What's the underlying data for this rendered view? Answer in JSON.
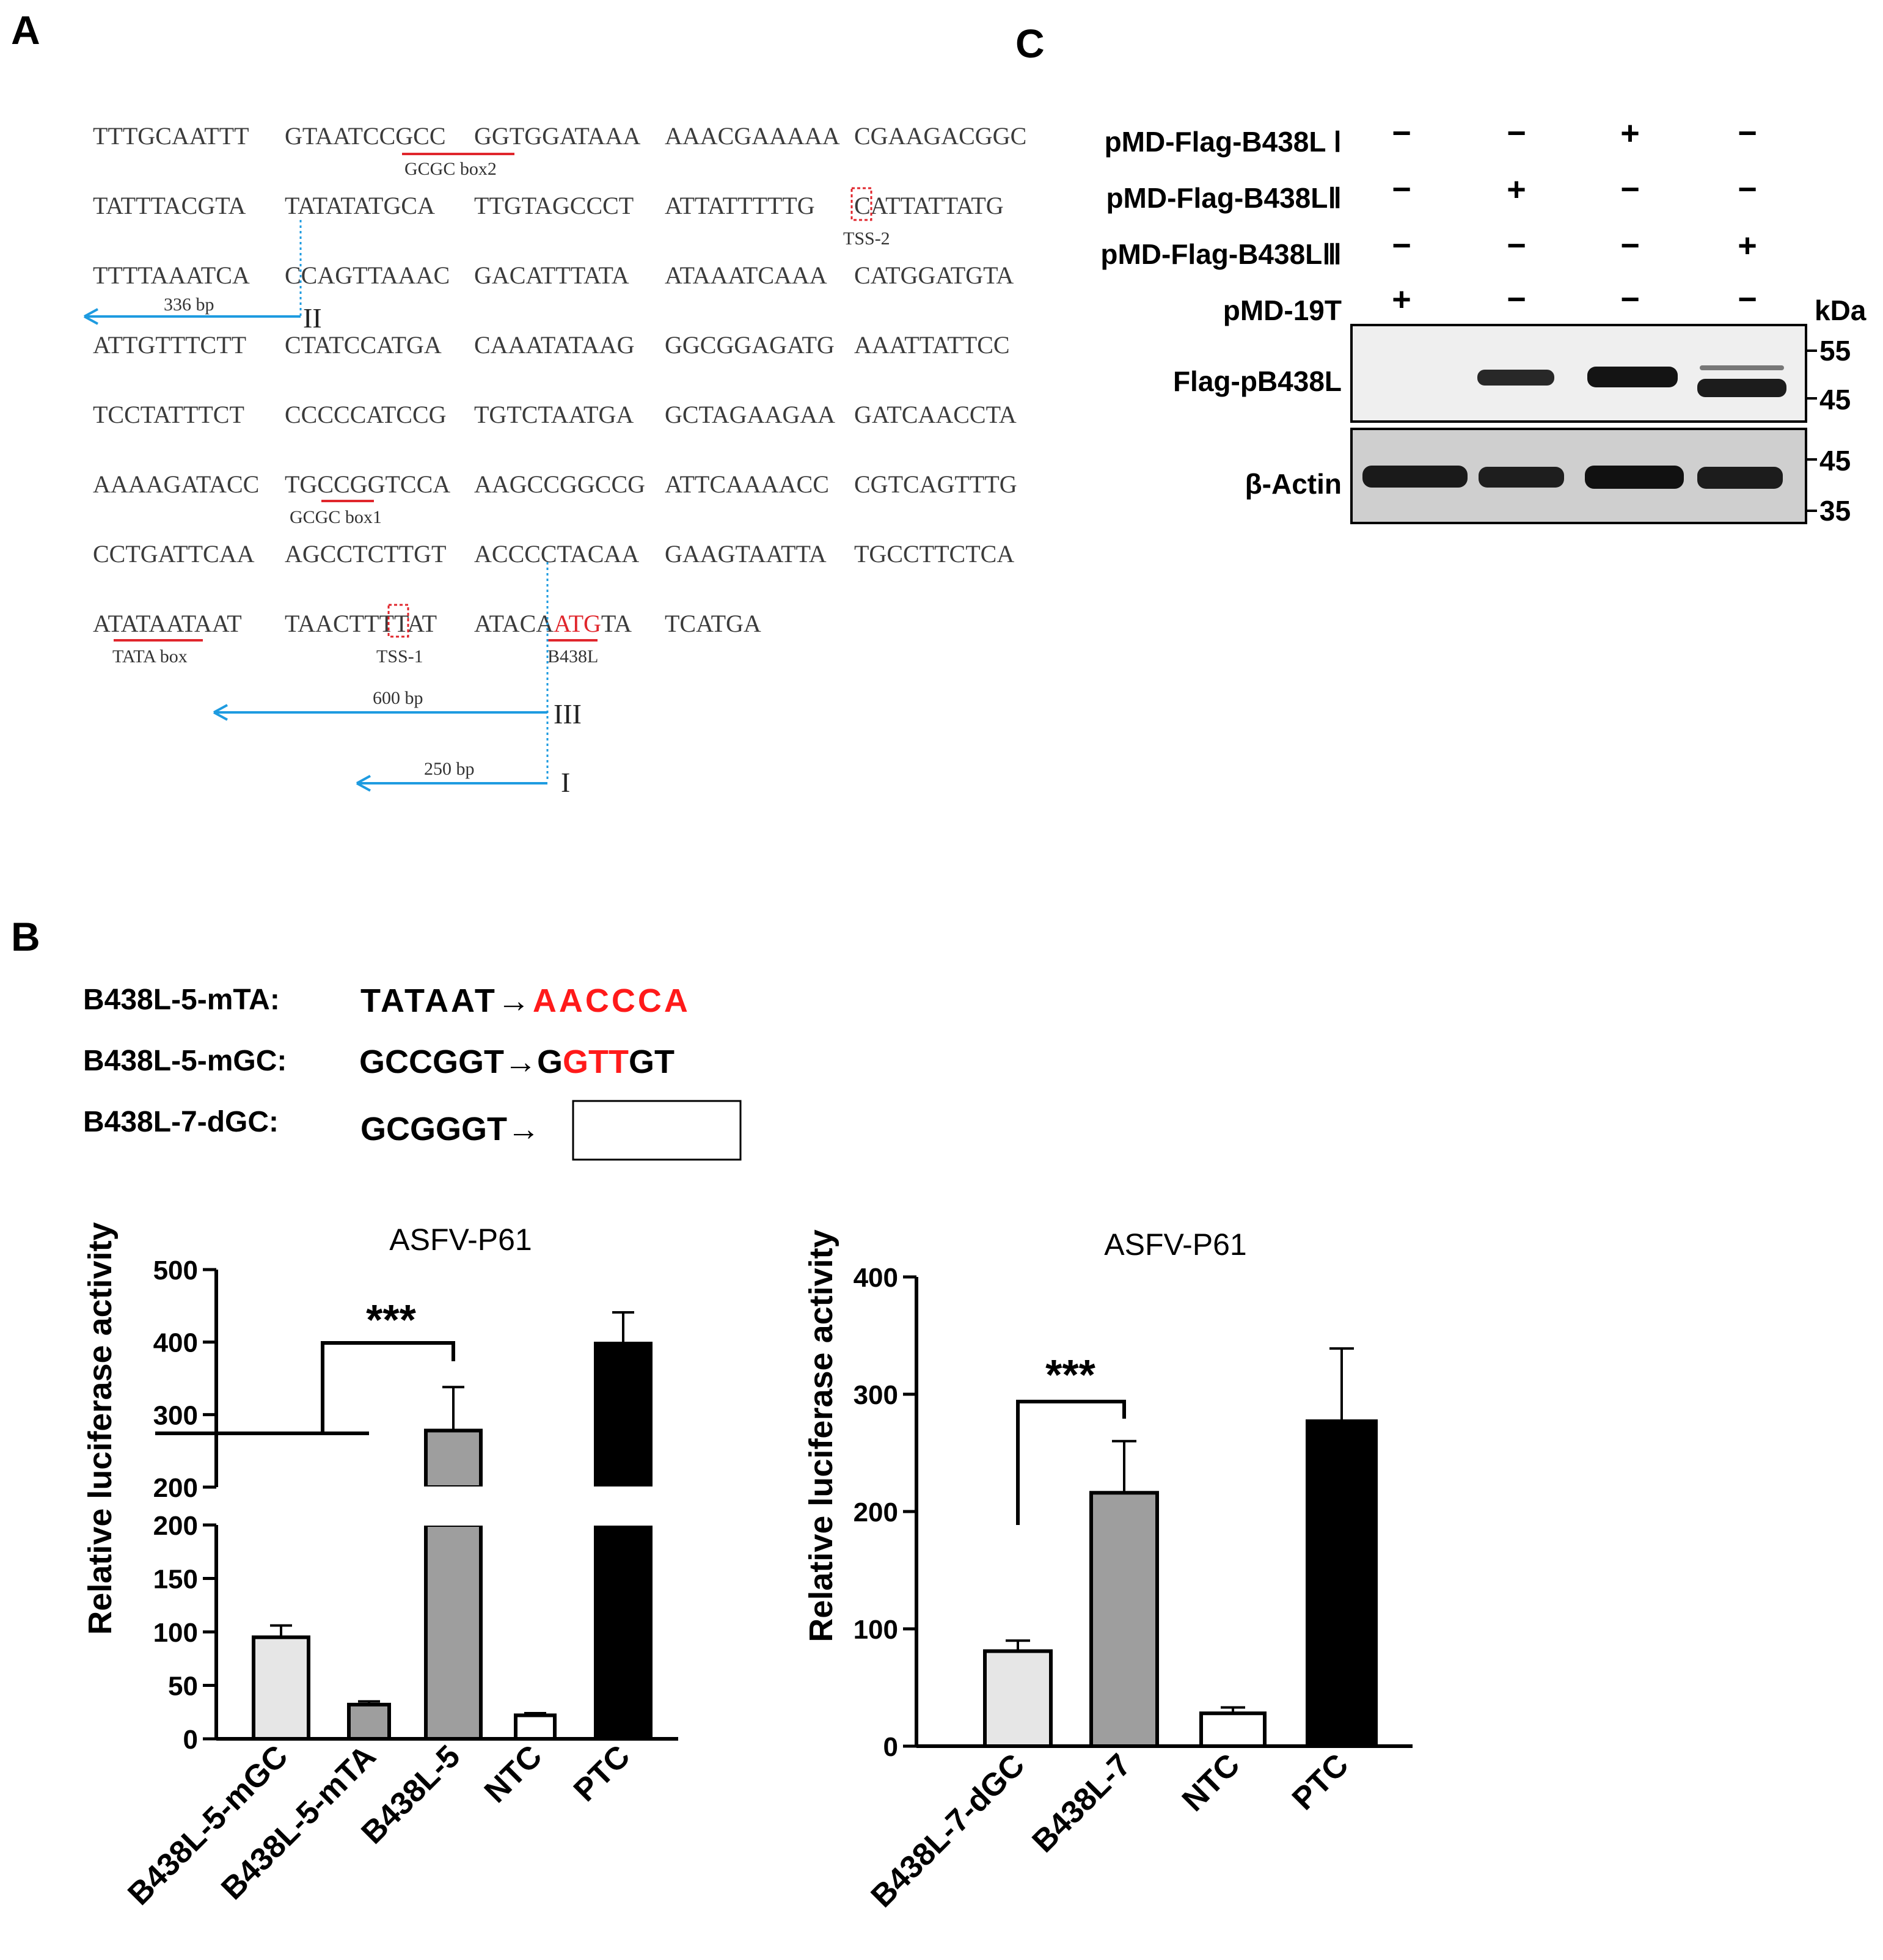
{
  "panel_a": {
    "letter": "A",
    "rows": [
      [
        "TTTGCAATTT",
        "GTAATCCGCC",
        "GGTGGATAAA",
        "AAACGAAAAA",
        "CGAAGACGGC"
      ],
      [
        "TATTTACGTA",
        "TATATATGCA",
        "TTGTAGCCCT",
        "ATTATTTTTG",
        "CATTATTATG"
      ],
      [
        "TTTTAAATCA",
        "CCAGTTAAAC",
        "GACATTTATA",
        "ATAAATCAAA",
        "CATGGATGTA"
      ],
      [
        "ATTGTTTCTT",
        "CTATCCATGA",
        "CAAATATAAG",
        "GGCGGAGATG",
        "AAATTATTCC"
      ],
      [
        "TCCTATTTCT",
        "CCCCCATCCG",
        "TGTCTAATGA",
        "GCTAGAAGAA",
        "GATCAACCTA"
      ],
      [
        "AAAAGATACC",
        "TGCCGGTCCA",
        "AAGCCGGCCG",
        "ATTCAAAACC",
        "CGTCAGTTTG"
      ],
      [
        "CCTGATTCAA",
        "AGCCTCTTGT",
        "ACCCCTACAA",
        "GAAGTAATTA",
        "TGCCTTCTCA"
      ],
      [
        "ATATAATAAT",
        "TAACTTTTAT",
        "ATACAATGTA",
        "TCATGA"
      ]
    ],
    "atg_prefix": "ATACA",
    "atg": "ATG",
    "atg_suffix": "TA",
    "annotations": {
      "gcgc_box2": "GCGC box2",
      "tss2": "TSS-2",
      "gcgc_box1": "GCGC box1",
      "tata_box": "TATA box",
      "tss1": "TSS-1",
      "b438l": "B438L"
    },
    "arrows": [
      {
        "roman": "II",
        "length": "336 bp"
      },
      {
        "roman": "III",
        "length": "600 bp"
      },
      {
        "roman": "I",
        "length": "250 bp"
      }
    ],
    "arrow_color": "#1e9be0",
    "mark_color": "#e0262c"
  },
  "panel_b": {
    "letter": "B",
    "mutations": [
      {
        "label": "B438L-5-mTA:",
        "original": "TATAAT",
        "arrow": "→",
        "mutated": "AACCCA"
      },
      {
        "label": "B438L-5-mGC:",
        "original": "GCCGGT",
        "arrow": "→",
        "mut_pre": "G",
        "mut_red": "GTT",
        "mut_post": "GT"
      },
      {
        "label": "B438L-7-dGC:",
        "original": "GCGGGT",
        "arrow": "→"
      }
    ],
    "highlight_color": "#ff1a1a"
  },
  "panel_c": {
    "letter": "C",
    "rows": [
      {
        "label": "pMD-Flag-B438L Ⅰ",
        "signs": [
          "−",
          "−",
          "+",
          "−"
        ]
      },
      {
        "label": "pMD-Flag-B438LⅡ",
        "signs": [
          "−",
          "+",
          "−",
          "−"
        ]
      },
      {
        "label": "pMD-Flag-B438LⅢ",
        "signs": [
          "−",
          "−",
          "−",
          "+"
        ]
      },
      {
        "label": "pMD-19T",
        "signs": [
          "+",
          "−",
          "−",
          "−"
        ]
      }
    ],
    "kda": "kDa",
    "blots": [
      {
        "label": "Flag-pB438L",
        "markers": [
          "55",
          "45"
        ]
      },
      {
        "label": "β-Actin",
        "markers": [
          "45",
          "35"
        ]
      }
    ]
  },
  "chart_data": [
    {
      "type": "bar",
      "title": "ASFV-P61",
      "ylabel": "Relative luciferase activity",
      "xlabel": "",
      "categories": [
        "B438L-5-mGC",
        "B438L-5-mTA",
        "B438L-5",
        "NTC",
        "PTC"
      ],
      "values": [
        95,
        32,
        278,
        22,
        398
      ],
      "errors": [
        11,
        3,
        60,
        2,
        43
      ],
      "colors": [
        "#e6e6e6",
        "#9e9e9e",
        "#9e9e9e",
        "#ffffff",
        "#000000"
      ],
      "ylim": [
        0,
        500
      ],
      "axis_break": [
        200,
        200
      ],
      "yticks_lower": [
        "0",
        "50",
        "100",
        "150",
        "200"
      ],
      "yticks_upper": [
        "200",
        "300",
        "400",
        "500"
      ],
      "significance": "***"
    },
    {
      "type": "bar",
      "title": "ASFV-P61",
      "ylabel": "Relative luciferase activity",
      "xlabel": "",
      "categories": [
        "B438L-7-dGC",
        "B438L-7",
        "NTC",
        "PTC"
      ],
      "values": [
        81,
        216,
        28,
        277
      ],
      "errors": [
        9,
        44,
        5,
        62
      ],
      "colors": [
        "#e6e6e6",
        "#9e9e9e",
        "#ffffff",
        "#000000"
      ],
      "ylim": [
        0,
        400
      ],
      "yticks": [
        "0",
        "100",
        "200",
        "300",
        "400"
      ],
      "significance": "***"
    }
  ]
}
